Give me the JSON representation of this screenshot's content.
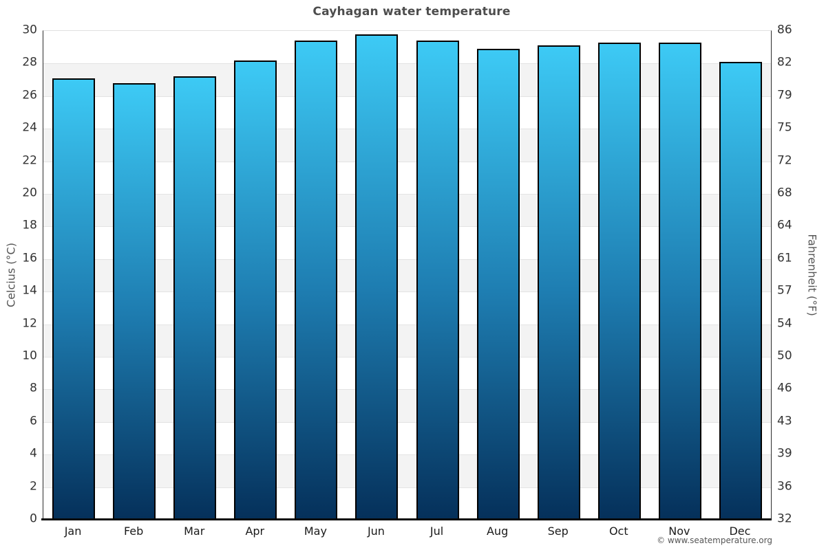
{
  "title": "Cayhagan water temperature",
  "footer": {
    "attribution": "© www.seatemperature.org"
  },
  "chart_data": {
    "type": "bar",
    "title": "Cayhagan water temperature",
    "categories": [
      "Jan",
      "Feb",
      "Mar",
      "Apr",
      "May",
      "Jun",
      "Jul",
      "Aug",
      "Sep",
      "Oct",
      "Nov",
      "Dec"
    ],
    "values": [
      27.1,
      26.8,
      27.2,
      28.2,
      29.4,
      29.8,
      29.4,
      28.9,
      29.1,
      29.3,
      29.3,
      28.1
    ],
    "xlabel": "",
    "ylabel_left": "Celcius (°C)",
    "ylabel_right": "Fahrenheit (°F)",
    "ylim": [
      0,
      30
    ],
    "y_left_ticks": [
      30,
      28,
      26,
      24,
      22,
      20,
      18,
      16,
      14,
      12,
      10,
      8,
      6,
      4,
      2,
      0
    ],
    "y_right_ticks": [
      86,
      82,
      79,
      75,
      72,
      68,
      64,
      61,
      57,
      54,
      50,
      46,
      43,
      39,
      36,
      32
    ],
    "grid": "horizontal bands every 2°C, alternating white and light gray",
    "legend": "none",
    "colors": {
      "bar_gradient_top": "#3dcaf5",
      "bar_gradient_mid": "#1e7db1",
      "bar_gradient_bottom": "#05305a",
      "bar_border": "#000000",
      "band_gray": "#f3f3f3",
      "gridline": "#e3e3e3",
      "title_text": "#4d4d4d",
      "tick_text": "#333333",
      "axis_label_text": "#555555"
    }
  }
}
